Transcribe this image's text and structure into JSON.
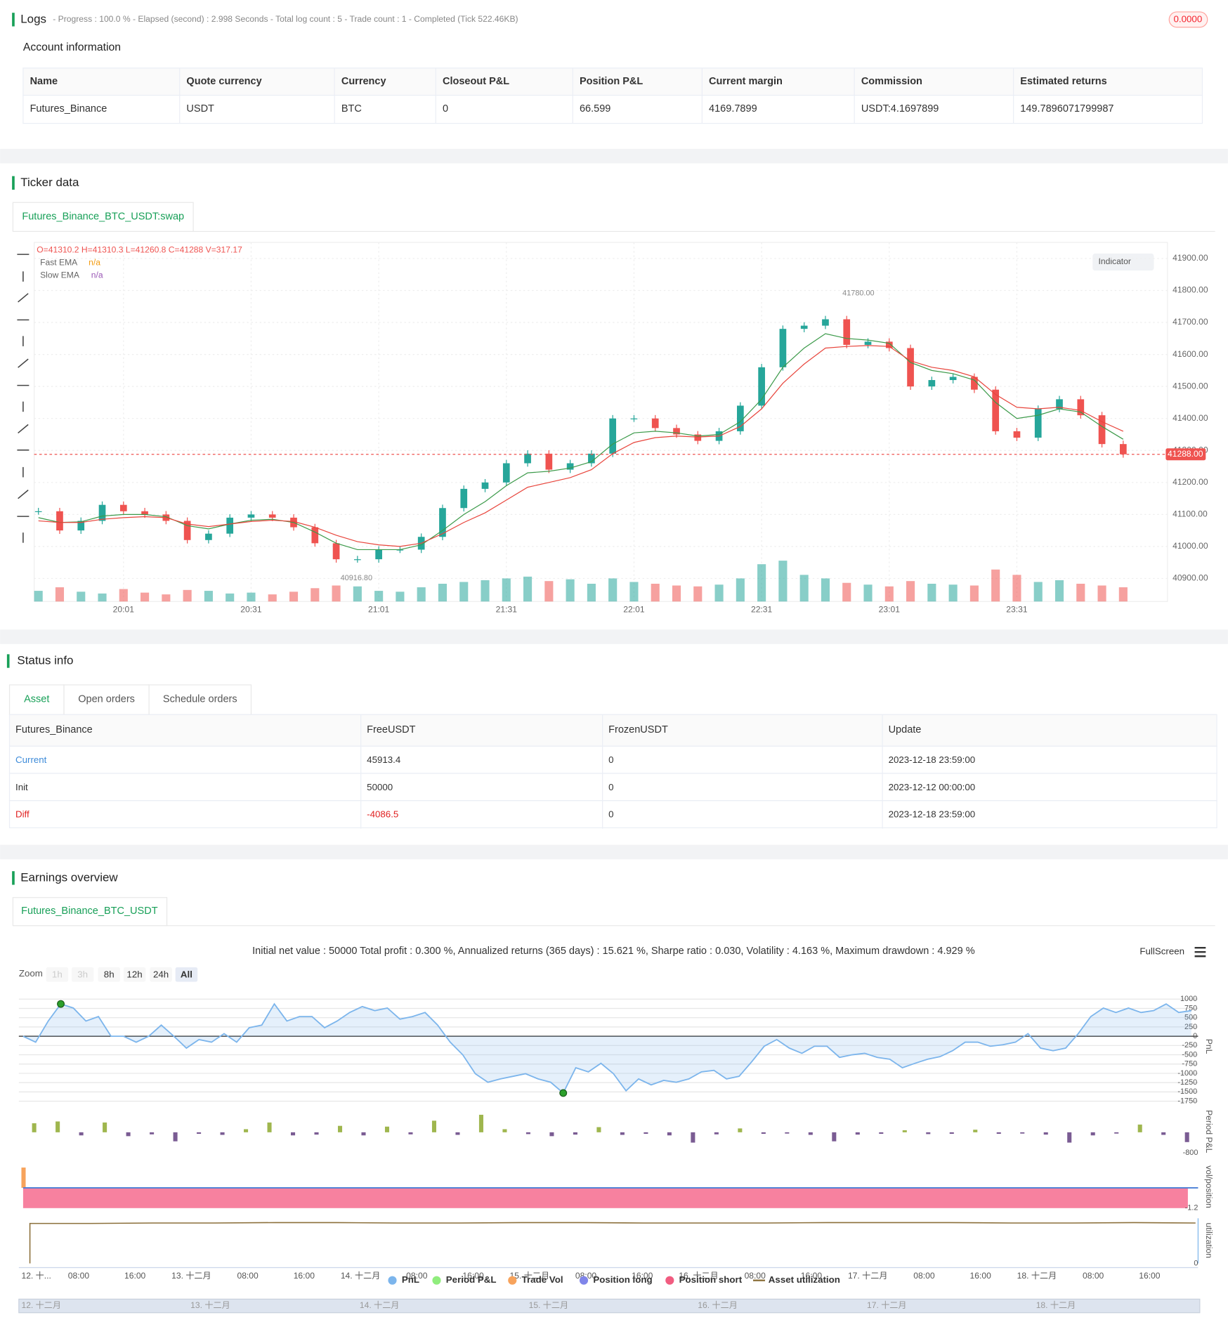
{
  "logs": {
    "title": "Logs",
    "progress": "- Progress : 100.0 % - Elapsed (second) : 2.998  Seconds - Total log count : 5 - Trade count : 1 - Completed (Tick 522.46KB)",
    "badge": "0.0000"
  },
  "account": {
    "title": "Account information",
    "columns": [
      "Name",
      "Quote currency",
      "Currency",
      "Closeout P&L",
      "Position P&L",
      "Current margin",
      "Commission",
      "Estimated returns"
    ],
    "rows": [
      [
        "Futures_Binance",
        "USDT",
        "BTC",
        "0",
        "66.599",
        "4169.7899",
        "USDT:4.1697899",
        "149.7896071799987"
      ]
    ]
  },
  "ticker": {
    "title": "Ticker data",
    "tab": "Futures_Binance_BTC_USDT:swap",
    "ohlcv": "O=41310.2 H=41310.3 L=41260.8 C=41288 V=317.17",
    "indicator_button": "Indicator",
    "legend_values": [
      "n/a",
      "n/a"
    ]
  },
  "status": {
    "title": "Status info",
    "tabs": [
      "Asset",
      "Open orders",
      "Schedule orders"
    ],
    "columns": [
      "Futures_Binance",
      "FreeUSDT",
      "FrozenUSDT",
      "Update"
    ],
    "rows": [
      [
        "Current",
        "45913.4",
        "0",
        "2023-12-18 23:59:00"
      ],
      [
        "Init",
        "50000",
        "0",
        "2023-12-12 00:00:00"
      ],
      [
        "Diff",
        "-4086.5",
        "0",
        "2023-12-18 23:59:00"
      ]
    ]
  },
  "earnings": {
    "title": "Earnings overview",
    "tab": "Futures_Binance_BTC_USDT",
    "summary": "Initial net value : 50000 Total profit : 0.300 %, Annualized returns (365 days) : 15.621 %, Sharpe ratio : 0.030, Volatility : 4.163 %, Maximum drawdown : 4.929 %",
    "fullscreen": "FullScreen",
    "zoom_label": "Zoom",
    "zoom_buttons": [
      "1h",
      "3h",
      "8h",
      "12h",
      "24h",
      "All"
    ],
    "xtick_labels": [
      "12. 十...",
      "08:00",
      "16:00",
      "13. 十二月",
      "08:00",
      "16:00",
      "14. 十二月",
      "08:00",
      "16:00",
      "15. 十二月",
      "08:00",
      "16:00",
      "16. 十二月",
      "08:00",
      "16:00",
      "17. 十二月",
      "08:00",
      "16:00",
      "18. 十二月",
      "08:00",
      "16:00"
    ],
    "navigator_labels": [
      "12. 十二月",
      "13. 十二月",
      "14. 十二月",
      "15. 十二月",
      "16. 十二月",
      "17. 十二月",
      "18. 十二月"
    ]
  },
  "chart_data": [
    {
      "type": "candlestick",
      "up_color": "#26a69a",
      "down_color": "#ef5350",
      "categories": [
        null,
        null,
        null,
        null,
        "20:01",
        null,
        null,
        null,
        null,
        null,
        "20:31",
        null,
        null,
        null,
        null,
        null,
        "21:01",
        null,
        null,
        null,
        null,
        null,
        "21:31",
        null,
        null,
        null,
        null,
        null,
        "22:01",
        null,
        null,
        null,
        null,
        null,
        "22:31",
        null,
        null,
        null,
        null,
        null,
        "23:01",
        null,
        null,
        null,
        null,
        null,
        "23:31",
        null,
        null,
        null,
        null,
        null
      ],
      "close": [
        41110,
        41050,
        41080,
        41130,
        41110,
        41100,
        41080,
        41020,
        41040,
        41090,
        41100,
        41090,
        41060,
        41010,
        40960,
        40960,
        40990,
        40990,
        41030,
        41120,
        41180,
        41200,
        41260,
        41290,
        41240,
        41260,
        41290,
        41400,
        41400,
        41370,
        41350,
        41330,
        41360,
        41440,
        41560,
        41680,
        41690,
        41710,
        41630,
        41640,
        41620,
        41500,
        41520,
        41530,
        41490,
        41360,
        41340,
        41430,
        41460,
        41410,
        41320,
        41288
      ],
      "volume": [
        120,
        160,
        110,
        90,
        140,
        100,
        80,
        130,
        120,
        90,
        100,
        80,
        110,
        150,
        180,
        170,
        120,
        110,
        160,
        200,
        220,
        240,
        260,
        280,
        230,
        250,
        200,
        260,
        220,
        200,
        180,
        170,
        190,
        260,
        420,
        460,
        300,
        260,
        210,
        190,
        170,
        230,
        200,
        190,
        180,
        360,
        300,
        220,
        240,
        200,
        180,
        160
      ],
      "series": [
        {
          "name": "Fast EMA",
          "color": "#3c9a4a",
          "values": [
            41090,
            41075,
            41077,
            41095,
            41100,
            41100,
            41093,
            41065,
            41055,
            41070,
            41082,
            41085,
            41075,
            41045,
            41010,
            40990,
            40990,
            40990,
            41005,
            41050,
            41100,
            41140,
            41190,
            41230,
            41235,
            41245,
            41265,
            41320,
            41355,
            41360,
            41355,
            41345,
            41350,
            41390,
            41460,
            41560,
            41620,
            41665,
            41650,
            41645,
            41635,
            41575,
            41550,
            41540,
            41520,
            41450,
            41400,
            41410,
            41430,
            41420,
            41375,
            41335
          ]
        },
        {
          "name": "Slow EMA",
          "color": "#e8453c",
          "values": [
            41080,
            41075,
            41075,
            41085,
            41090,
            41093,
            41090,
            41070,
            41062,
            41070,
            41078,
            41082,
            41078,
            41060,
            41035,
            41015,
            41005,
            41000,
            41010,
            41040,
            41075,
            41105,
            41145,
            41185,
            41200,
            41215,
            41240,
            41290,
            41325,
            41340,
            41345,
            41342,
            41345,
            41375,
            41430,
            41510,
            41570,
            41620,
            41625,
            41628,
            41625,
            41580,
            41560,
            41550,
            41530,
            41475,
            41435,
            41430,
            41435,
            41425,
            41390,
            41360
          ]
        }
      ],
      "ylim": [
        40828,
        41950
      ],
      "yticks": [
        {
          "value": 40900,
          "label": "40900.00"
        },
        {
          "value": 41000,
          "label": "41000.00"
        },
        {
          "value": 41100,
          "label": "41100.00"
        },
        {
          "value": 41200,
          "label": "41200.00"
        },
        {
          "value": 41300,
          "label": "41300.00"
        },
        {
          "value": 41400,
          "label": "41400.00"
        },
        {
          "value": 41500,
          "label": "41500.00"
        },
        {
          "value": 41600,
          "label": "41600.00"
        },
        {
          "value": 41700,
          "label": "41700.00"
        },
        {
          "value": 41800,
          "label": "41800.00"
        },
        {
          "value": 41900,
          "label": "41900.00"
        }
      ],
      "last_price": {
        "value": 41288,
        "label": "41288.00"
      },
      "high": {
        "value": 41780,
        "label": "41780.00"
      },
      "low": {
        "value": 40916.8,
        "label": "40916.80"
      },
      "grid": true
    },
    {
      "type": "line",
      "axis_title": "PnL",
      "series": [
        {
          "name": "PnL",
          "color": "#7cb5ec",
          "values": [
            0,
            -160,
            410,
            870,
            760,
            410,
            530,
            0,
            0,
            -160,
            0,
            300,
            0,
            -320,
            -90,
            -160,
            70,
            -160,
            230,
            300,
            870,
            410,
            530,
            530,
            230,
            410,
            640,
            800,
            690,
            760,
            460,
            530,
            640,
            300,
            -160,
            -500,
            -1010,
            -1240,
            -1150,
            -1080,
            -1010,
            -1150,
            -1240,
            -1530,
            -850,
            -960,
            -730,
            -1010,
            -1470,
            -1150,
            -1310,
            -1190,
            -1240,
            -1150,
            -960,
            -920,
            -1150,
            -1080,
            -690,
            -270,
            -90,
            -320,
            -460,
            -270,
            -270,
            -570,
            -500,
            -460,
            -570,
            -620,
            -850,
            -730,
            -620,
            -550,
            -390,
            -160,
            -160,
            -270,
            -230,
            -160,
            70,
            -320,
            -390,
            -320,
            70,
            530,
            760,
            640,
            760,
            640,
            690,
            870,
            640,
            690
          ]
        }
      ],
      "ylim": [
        -1765,
        1215
      ],
      "yticks": [
        1000,
        750,
        500,
        250,
        0,
        -250,
        -500,
        -750,
        -1000,
        -1250,
        -1500,
        -1750
      ]
    },
    {
      "type": "bar",
      "axis_title": "Period P&L",
      "series": [
        {
          "name": "Period P&L",
          "color": "#9fb64e",
          "negative_color": "#7a5c93",
          "values": [
            350,
            420,
            -120,
            380,
            -150,
            -80,
            -350,
            -60,
            -100,
            120,
            380,
            -120,
            -90,
            250,
            -120,
            220,
            -80,
            450,
            -100,
            680,
            120,
            -70,
            -150,
            -90,
            200,
            -100,
            -60,
            -120,
            -400,
            -80,
            150,
            -60,
            -50,
            -100,
            -350,
            -90,
            -60,
            80,
            -70,
            -60,
            100,
            -60,
            -50,
            -90,
            -400,
            -120,
            -50,
            300,
            -100,
            -380
          ]
        }
      ],
      "ylim": [
        -960,
        1020
      ],
      "yticks": [
        -800
      ]
    },
    {
      "type": "bar",
      "axis_title": "vol/position",
      "series": [
        {
          "name": "Trade Vol",
          "color": "#f7a35c",
          "values": [
            1.2
          ]
        },
        {
          "name": "Position long",
          "color": "#4a7fd6",
          "values": [
            0
          ]
        },
        {
          "name": "Position short",
          "color": "#f7819f",
          "values": [
            -1.2
          ]
        }
      ],
      "ylim": [
        -1.45,
        1.57
      ],
      "yticks": [
        -1.2
      ]
    },
    {
      "type": "line",
      "axis_title": "utilization",
      "series": [
        {
          "name": "Asset utilization",
          "color": "#8b6f3a",
          "values": [
            0,
            0.93,
            0.94,
            0.94,
            0.95,
            0.95,
            0.94,
            0.94,
            0.95,
            0.95,
            0.94,
            0.94,
            0.94,
            0.95,
            0.95,
            0.95,
            0.94,
            0.94,
            0.95,
            0.94
          ]
        }
      ],
      "ylim": [
        0,
        1.05
      ],
      "yticks": [
        0
      ]
    }
  ]
}
